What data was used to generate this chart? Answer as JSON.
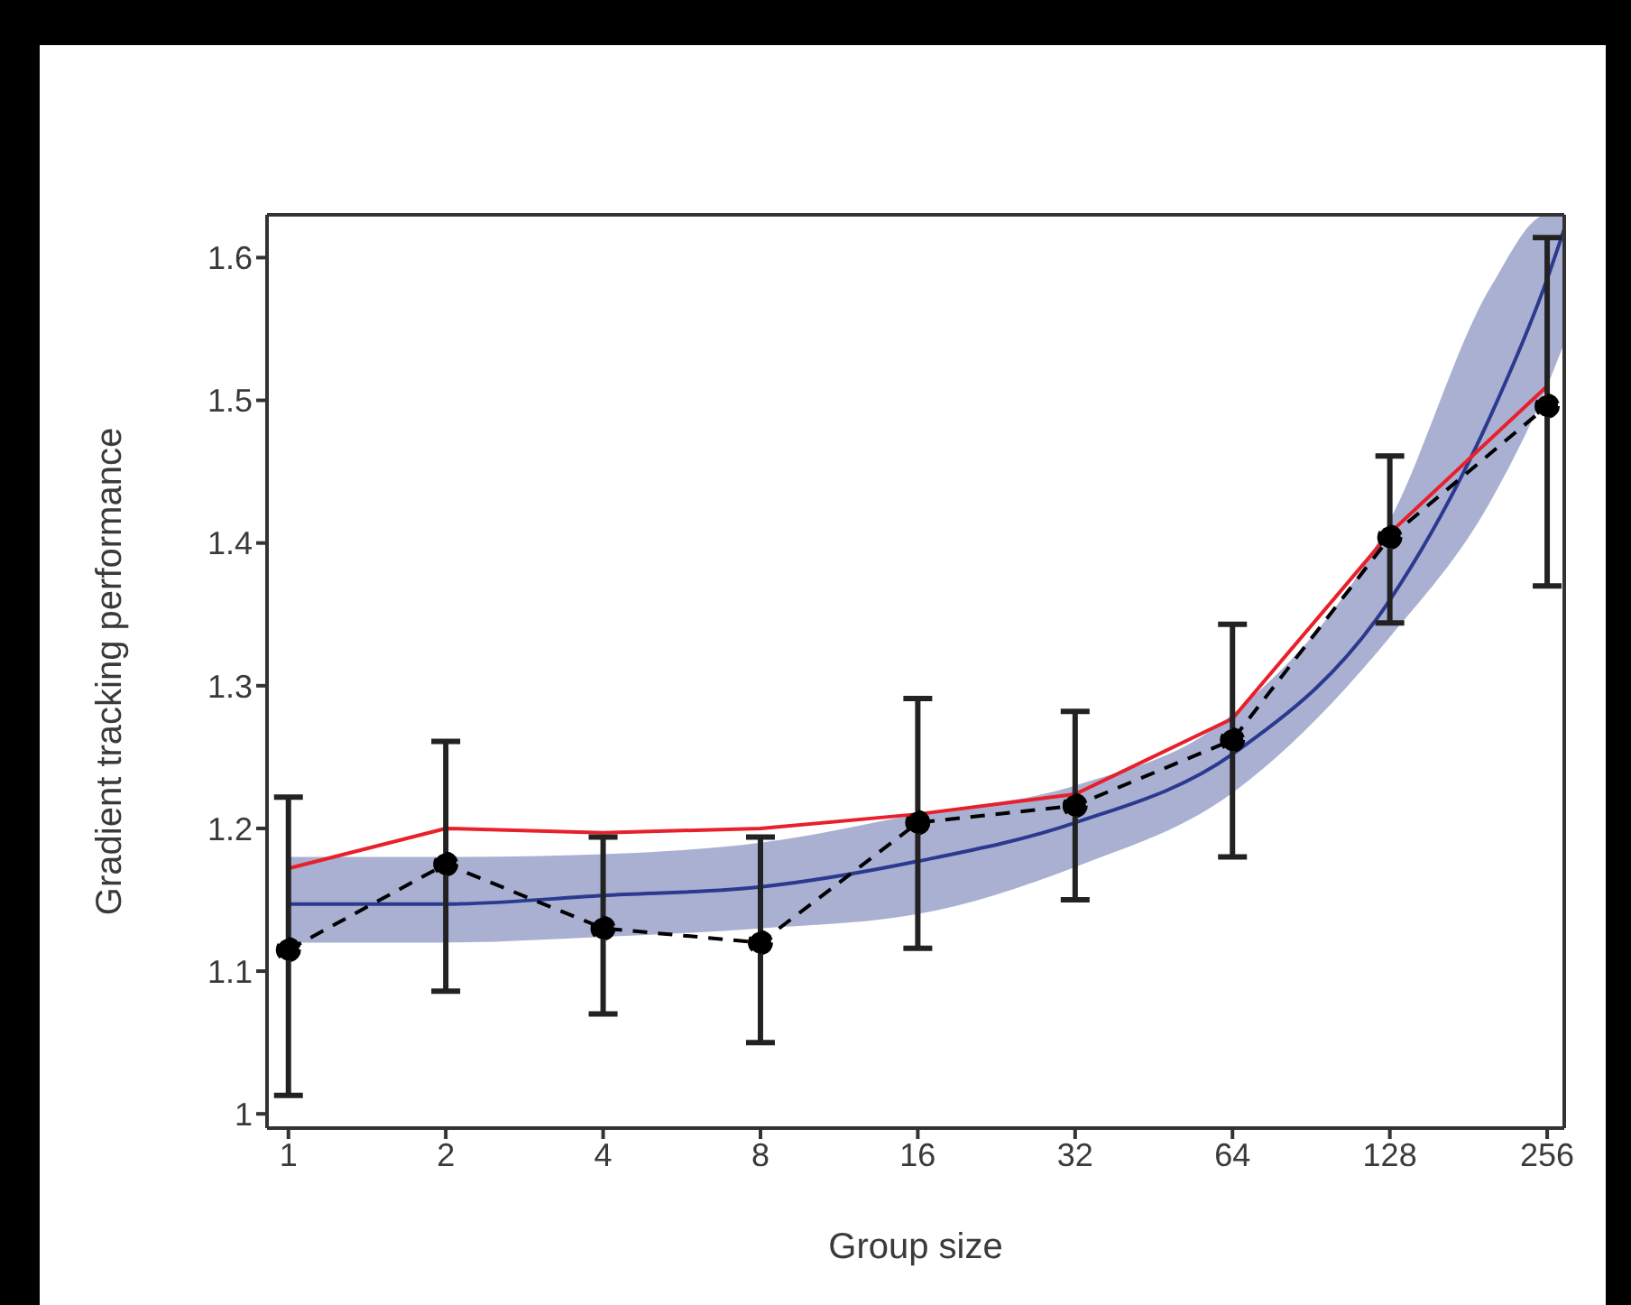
{
  "chart_data": {
    "type": "line",
    "xlabel": "Group size",
    "ylabel": "Gradient tracking performance",
    "log": "x",
    "xlim": [
      0.91,
      276
    ],
    "xticks": [
      1,
      2,
      4,
      8,
      16,
      32,
      64,
      128,
      256
    ],
    "ylim": [
      0.99,
      1.63
    ],
    "yticks": [
      1,
      1.1,
      1.2,
      1.3,
      1.4,
      1.5,
      1.6
    ],
    "grid": false,
    "legend": false,
    "x": [
      1,
      2,
      4,
      8,
      16,
      32,
      64,
      128,
      256
    ],
    "series": [
      {
        "color": "#2b3a8f",
        "marker": "none",
        "line_style": "solid",
        "x": [
          1,
          2,
          4,
          8,
          16,
          32,
          64,
          128,
          200,
          256,
          276
        ],
        "values": [
          1.147,
          1.147,
          1.153,
          1.159,
          1.177,
          1.204,
          1.252,
          1.36,
          1.49,
          1.585,
          1.62
        ],
        "lower": [
          1.12,
          1.12,
          1.124,
          1.13,
          1.14,
          1.173,
          1.225,
          1.334,
          1.43,
          1.51,
          1.54
        ],
        "upper": [
          1.18,
          1.18,
          1.182,
          1.19,
          1.21,
          1.23,
          1.28,
          1.416,
          1.58,
          1.63,
          1.63
        ]
      },
      {
        "color": "#e8202a",
        "marker": "none",
        "line_style": "solid",
        "values": [
          1.172,
          1.2,
          1.197,
          1.2,
          1.21,
          1.224,
          1.277,
          1.407,
          1.51
        ]
      },
      {
        "color": "#000000",
        "marker": "circle",
        "line_style": "dashed",
        "values": [
          1.115,
          1.175,
          1.13,
          1.12,
          1.204,
          1.216,
          1.262,
          1.404,
          1.496
        ],
        "errors": [
          [
            1.013,
            1.222
          ],
          [
            1.086,
            1.261
          ],
          [
            1.07,
            1.194
          ],
          [
            1.05,
            1.194
          ],
          [
            1.116,
            1.291
          ],
          [
            1.15,
            1.282
          ],
          [
            1.18,
            1.343
          ],
          [
            1.344,
            1.461
          ],
          [
            1.37,
            1.614
          ]
        ]
      }
    ]
  }
}
